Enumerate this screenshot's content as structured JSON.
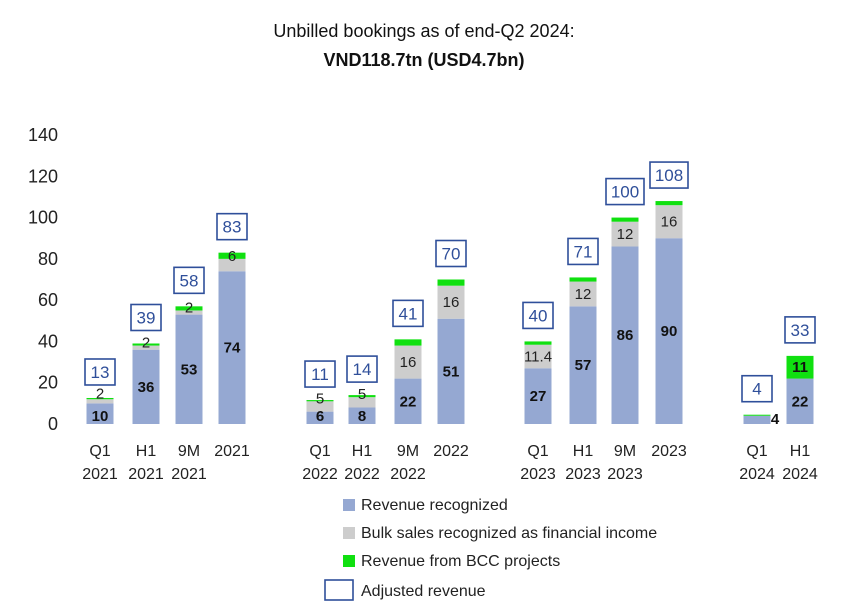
{
  "chart_data": {
    "type": "bar",
    "title": "Unbilled bookings as of end-Q2 2024:",
    "subtitle": "VND118.7tn (USD4.7bn)",
    "ylim": [
      0,
      140
    ],
    "yticks": [
      0,
      20,
      40,
      60,
      80,
      100,
      120,
      140
    ],
    "grid": false,
    "legend_position": "bottom",
    "categories": [
      [
        "Q1",
        "2021"
      ],
      [
        "H1",
        "2021"
      ],
      [
        "9M",
        "2021"
      ],
      [
        "2021",
        ""
      ],
      [
        "Q1",
        "2022"
      ],
      [
        "H1",
        "2022"
      ],
      [
        "9M",
        "2022"
      ],
      [
        "2022",
        ""
      ],
      [
        "Q1",
        "2023"
      ],
      [
        "H1",
        "2023"
      ],
      [
        "9M",
        "2023"
      ],
      [
        "2023",
        ""
      ],
      [
        "Q1",
        "2024"
      ],
      [
        "H1",
        "2024"
      ]
    ],
    "groups": [
      4,
      4,
      4,
      2
    ],
    "series": [
      {
        "name": "Revenue recognized",
        "color": "#95a8d2",
        "values": [
          10,
          36,
          53,
          74,
          6,
          8,
          22,
          51,
          27,
          57,
          86,
          90,
          4,
          22
        ],
        "labels": [
          "10",
          "36",
          "53",
          "74",
          "6",
          "8",
          "22",
          "51",
          "27",
          "57",
          "86",
          "90",
          "4",
          "22"
        ]
      },
      {
        "name": "Bulk sales recognized as financial income",
        "color": "#cdcdcd",
        "values": [
          2,
          2,
          2,
          6,
          5,
          5,
          16,
          16,
          11.4,
          12,
          12,
          16,
          0,
          0
        ],
        "labels": [
          "2",
          "2",
          "2",
          "6",
          "5",
          "5",
          "16",
          "16",
          "11.4",
          "12",
          "12",
          "16",
          "",
          ""
        ]
      },
      {
        "name": "Revenue from BCC projects",
        "color": "#10e010",
        "values": [
          0.6,
          1,
          2,
          3,
          0.6,
          1,
          3,
          3,
          1.6,
          2,
          2,
          2,
          0.5,
          11
        ],
        "labels": [
          "",
          "",
          "",
          "",
          "",
          "",
          "",
          "",
          "",
          "",
          "",
          "",
          "",
          "11"
        ]
      }
    ],
    "adjusted_revenue": {
      "name": "Adjusted revenue",
      "color": "#2f4f9a",
      "values": [
        13,
        39,
        58,
        83,
        11,
        14,
        41,
        70,
        40,
        71,
        100,
        108,
        4,
        33
      ]
    }
  }
}
